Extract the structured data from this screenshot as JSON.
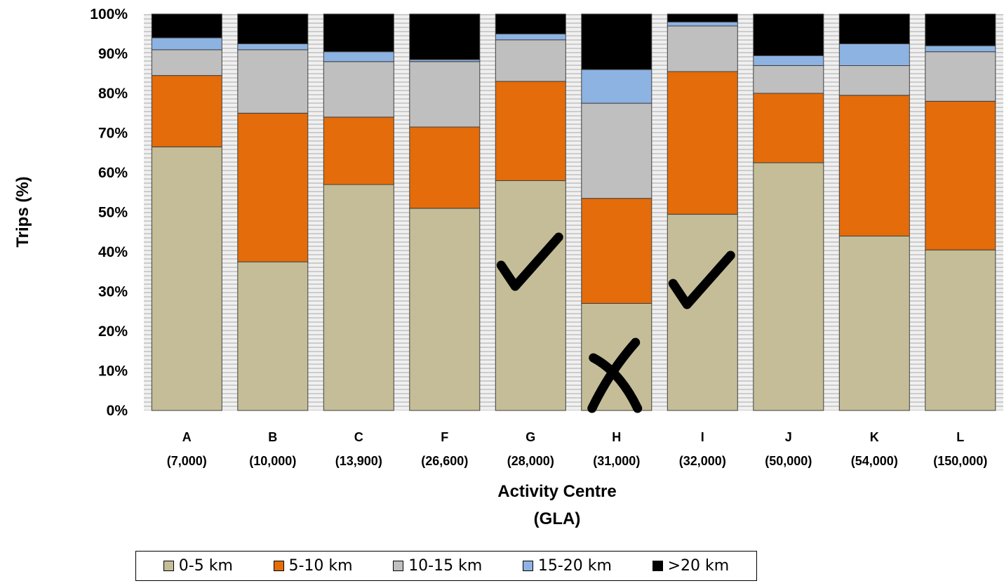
{
  "chart_data": {
    "type": "bar",
    "stacked": true,
    "percent": true,
    "ylabel": "Trips (%)",
    "xlabel": [
      "Activity Centre",
      "(GLA)"
    ],
    "ylim": [
      0,
      100
    ],
    "yticks": [
      "0%",
      "10%",
      "20%",
      "30%",
      "40%",
      "50%",
      "60%",
      "70%",
      "80%",
      "90%",
      "100%"
    ],
    "categories": [
      "A",
      "B",
      "C",
      "F",
      "G",
      "H",
      "I",
      "J",
      "K",
      "L"
    ],
    "category_sublabels": [
      "(7,000)",
      "(10,000)",
      "(13,900)",
      "(26,600)",
      "(28,000)",
      "(31,000)",
      "(32,000)",
      "(50,000)",
      "(54,000)",
      "(150,000)"
    ],
    "series": [
      {
        "name": "0-5 km",
        "color": "#c4bd97",
        "values": [
          66.5,
          37.5,
          57.0,
          51.0,
          58.0,
          27.0,
          49.5,
          62.5,
          44.0,
          40.5
        ]
      },
      {
        "name": "5-10 km",
        "color": "#e46c0a",
        "values": [
          18.0,
          37.5,
          17.0,
          20.5,
          25.0,
          26.5,
          36.0,
          17.5,
          35.5,
          37.5
        ]
      },
      {
        "name": "10-15 km",
        "color": "#bfbfbf",
        "values": [
          6.5,
          16.0,
          14.0,
          16.5,
          10.5,
          24.0,
          11.5,
          7.0,
          7.5,
          12.5
        ]
      },
      {
        "name": "15-20 km",
        "color": "#8db3e2",
        "values": [
          3.0,
          1.5,
          2.5,
          0.5,
          1.5,
          8.5,
          1.0,
          2.5,
          5.5,
          1.5
        ]
      },
      {
        "name": ">20 km",
        "color": "#000000",
        "values": [
          6.0,
          7.5,
          9.5,
          11.5,
          5.0,
          14.0,
          2.0,
          10.5,
          7.5,
          8.0
        ]
      }
    ],
    "annotations": [
      {
        "mark": "check",
        "category": "G"
      },
      {
        "mark": "check",
        "category": "I"
      },
      {
        "mark": "cross",
        "category": "H"
      }
    ],
    "grid": false,
    "legend_position": "bottom"
  },
  "legend": {
    "items": [
      {
        "label": "0-5 km",
        "color": "#c4bd97"
      },
      {
        "label": "5-10 km",
        "color": "#e46c0a"
      },
      {
        "label": "10-15 km",
        "color": "#bfbfbf"
      },
      {
        "label": "15-20 km",
        "color": "#8db3e2"
      },
      {
        "label": ">20 km",
        "color": "#000000"
      }
    ]
  }
}
